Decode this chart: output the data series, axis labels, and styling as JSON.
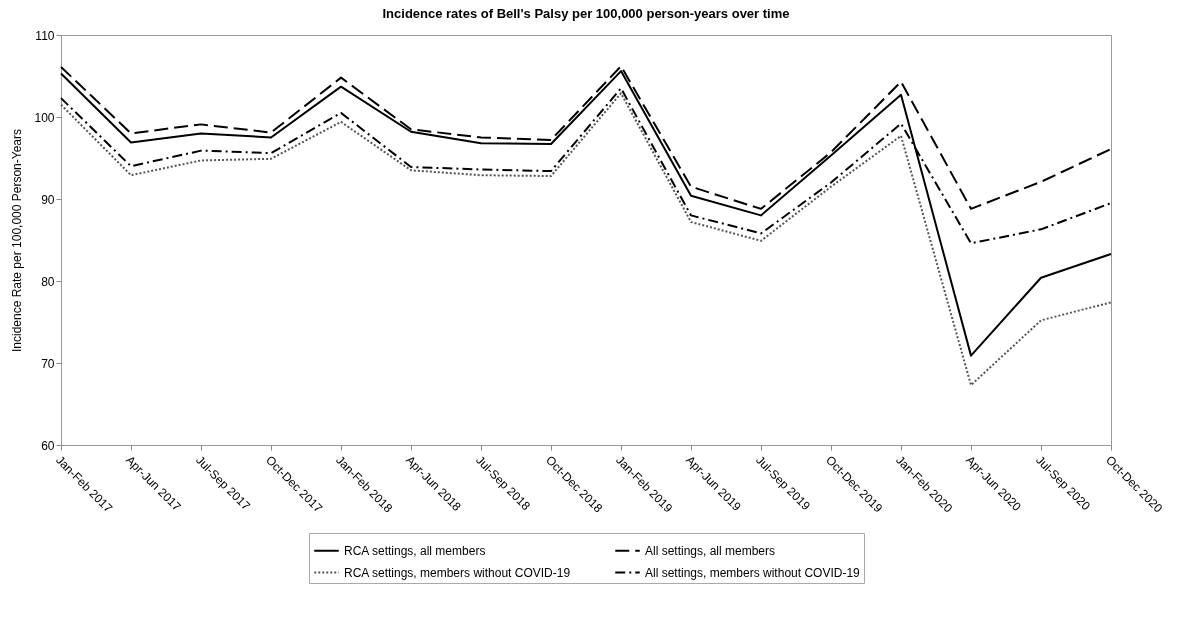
{
  "chart_data": {
    "type": "line",
    "title": "Incidence rates of Bell's Palsy per 100,000 person-years over time",
    "ylabel": "Incidence Rate per 100,000 Person-Years",
    "categories": [
      "Jan-Feb 2017",
      "Apr-Jun 2017",
      "Jul-Sep 2017",
      "Oct-Dec 2017",
      "Jan-Feb 2018",
      "Apr-Jun 2018",
      "Jul-Sep 2018",
      "Oct-Dec 2018",
      "Jan-Feb 2019",
      "Apr-Jun 2019",
      "Jul-Sep 2019",
      "Oct-Dec 2019",
      "Jan-Feb 2020",
      "Apr-Jun 2020",
      "Jul-Sep 2020",
      "Oct-Dec 2020"
    ],
    "series": [
      {
        "name": "RCA settings, all members",
        "color": "#000000",
        "line_style": "solid",
        "values": [
          105.3,
          96.9,
          98.0,
          97.5,
          103.7,
          98.2,
          96.8,
          96.7,
          105.6,
          90.4,
          88.0,
          95.3,
          102.7,
          70.9,
          80.4,
          83.3
        ]
      },
      {
        "name": "All settings, all members",
        "color": "#000000",
        "line_style": "dashed",
        "values": [
          106.1,
          98.0,
          99.1,
          98.1,
          104.8,
          98.5,
          97.5,
          97.2,
          106.2,
          91.5,
          88.8,
          95.7,
          104.3,
          88.8,
          92.1,
          96.1
        ]
      },
      {
        "name": "RCA settings, members without COVID-19",
        "color": "#555555",
        "line_style": "dotted",
        "values": [
          101.5,
          92.9,
          94.7,
          94.9,
          99.4,
          93.5,
          92.9,
          92.8,
          102.9,
          87.2,
          84.9,
          91.5,
          97.7,
          67.3,
          75.2,
          77.4
        ]
      },
      {
        "name": "All settings, members without COVID-19",
        "color": "#000000",
        "line_style": "dashdot",
        "values": [
          102.3,
          94.0,
          95.9,
          95.6,
          100.5,
          93.9,
          93.6,
          93.4,
          103.5,
          88.0,
          85.8,
          92.0,
          99.2,
          84.6,
          86.3,
          89.5
        ]
      }
    ],
    "ylim": [
      60,
      110
    ],
    "yticks": [
      60,
      70,
      80,
      90,
      100,
      110
    ],
    "grid": false,
    "legend": "bottom",
    "marker": "none"
  }
}
